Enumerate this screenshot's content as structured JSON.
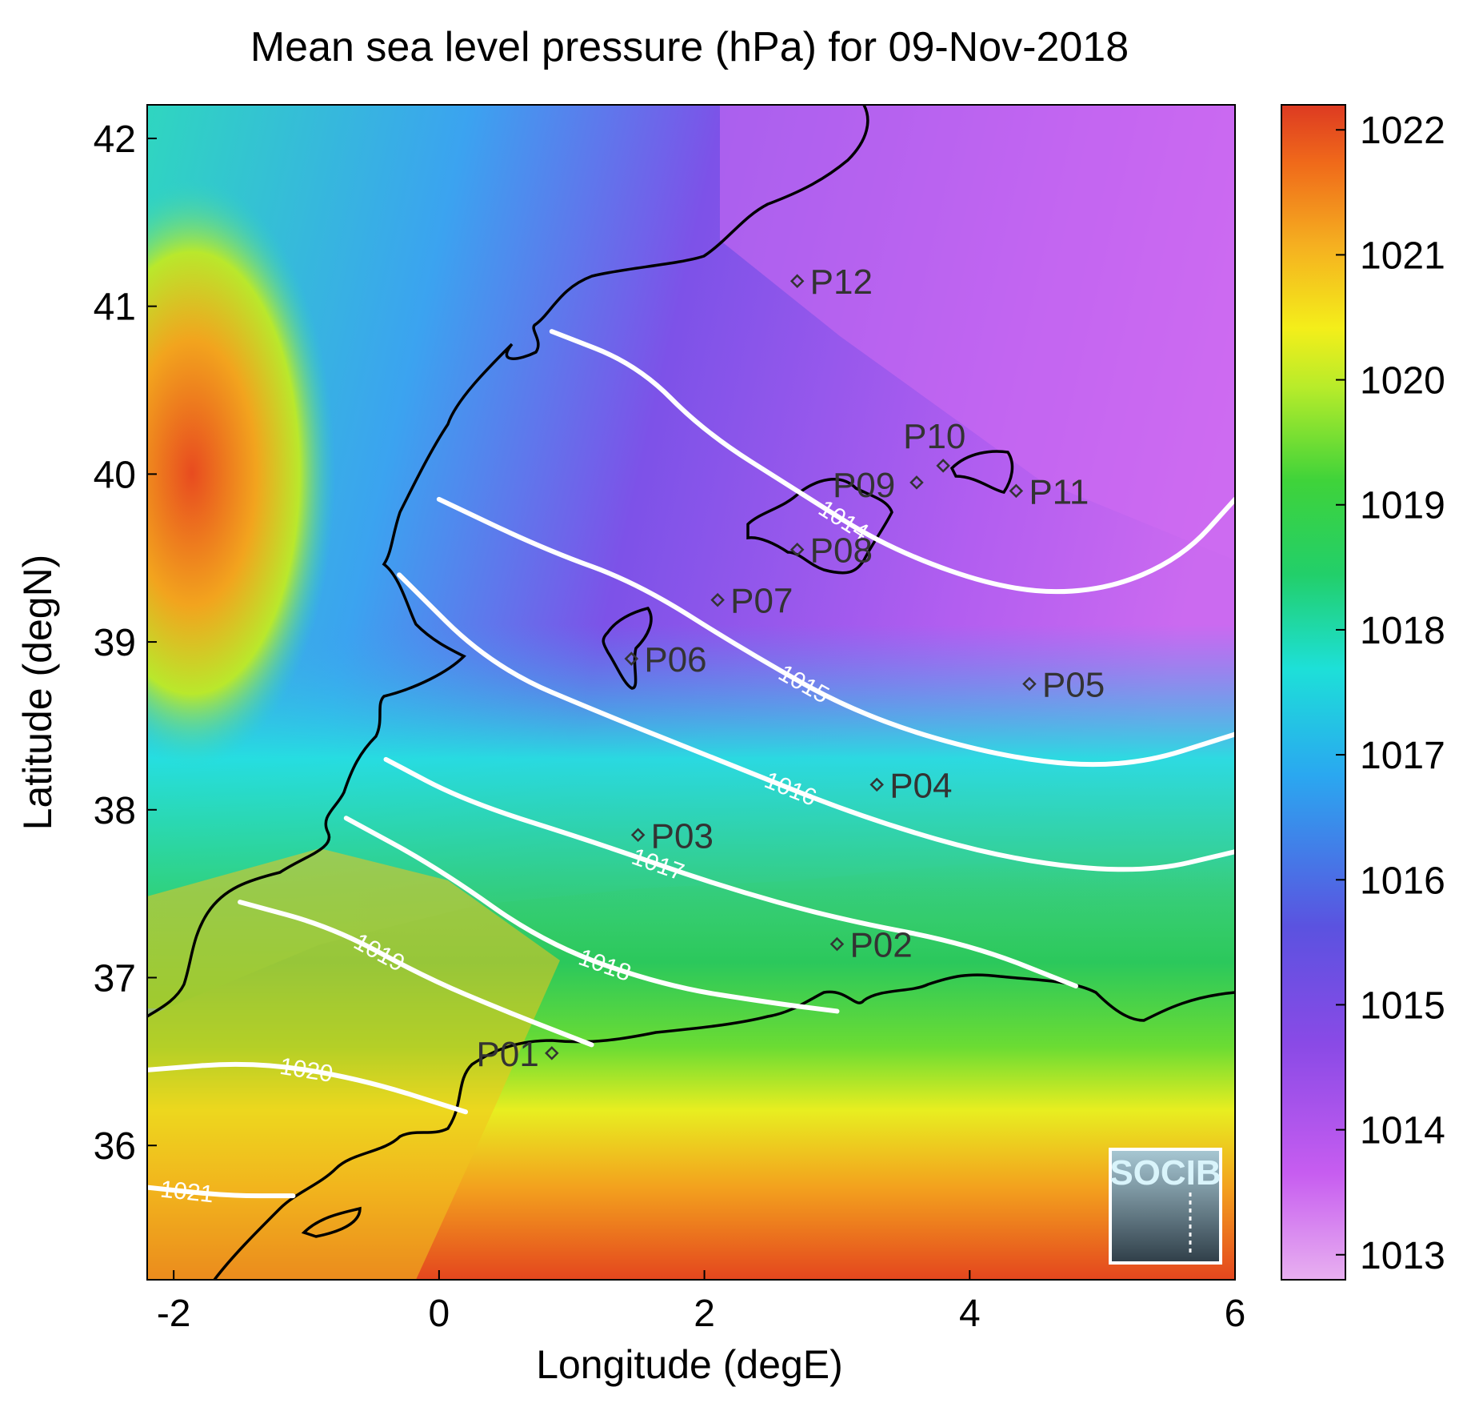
{
  "title": "Mean sea level pressure (hPa) for 09-Nov-2018",
  "xlabel": "Longitude (degE)",
  "ylabel": "Latitude (degN)",
  "x_ticks": [
    "-2",
    "0",
    "2",
    "4",
    "6"
  ],
  "y_ticks": [
    "42",
    "41",
    "40",
    "39",
    "38",
    "37",
    "36"
  ],
  "colorbar": {
    "ticks": [
      "1022",
      "1021",
      "1020",
      "1019",
      "1018",
      "1017",
      "1016",
      "1015",
      "1014",
      "1013"
    ],
    "colors": [
      "#e8b0f0",
      "#c75df0",
      "#8a4ae6",
      "#5b52e0",
      "#2aa8f0",
      "#1de0d8",
      "#22cf6a",
      "#3fd33a",
      "#b8ec2a",
      "#f4ee1a",
      "#f5b020",
      "#f06a1a",
      "#dd3a22"
    ]
  },
  "logo": {
    "text": "SOCIB"
  },
  "chart_data": {
    "type": "map",
    "variable": "Mean sea level pressure",
    "units": "hPa",
    "date": "09-Nov-2018",
    "xlim": [
      -2.2,
      6.0
    ],
    "ylim": [
      35.2,
      42.2
    ],
    "clim": [
      1012.8,
      1022.2
    ],
    "grid": false,
    "points": [
      {
        "name": "P01",
        "lon": 0.85,
        "lat": 36.55
      },
      {
        "name": "P02",
        "lon": 3.0,
        "lat": 37.2
      },
      {
        "name": "P03",
        "lon": 1.5,
        "lat": 37.85
      },
      {
        "name": "P04",
        "lon": 3.3,
        "lat": 38.15
      },
      {
        "name": "P05",
        "lon": 4.45,
        "lat": 38.75
      },
      {
        "name": "P06",
        "lon": 1.45,
        "lat": 38.9
      },
      {
        "name": "P07",
        "lon": 2.1,
        "lat": 39.25
      },
      {
        "name": "P08",
        "lon": 2.7,
        "lat": 39.55
      },
      {
        "name": "P09",
        "lon": 3.6,
        "lat": 39.95
      },
      {
        "name": "P10",
        "lon": 3.8,
        "lat": 40.05
      },
      {
        "name": "P11",
        "lon": 4.35,
        "lat": 39.9
      },
      {
        "name": "P12",
        "lon": 2.7,
        "lat": 41.15
      }
    ],
    "isobars": [
      {
        "value": "1014",
        "path": [
          [
            0.85,
            40.85
          ],
          [
            1.5,
            40.65
          ],
          [
            2.0,
            40.25
          ],
          [
            2.7,
            39.9
          ],
          [
            3.4,
            39.55
          ],
          [
            4.3,
            39.3
          ],
          [
            5.0,
            39.3
          ],
          [
            5.6,
            39.5
          ],
          [
            6.0,
            39.85
          ]
        ]
      },
      {
        "value": "1015",
        "path": [
          [
            0.0,
            39.85
          ],
          [
            0.8,
            39.55
          ],
          [
            1.5,
            39.35
          ],
          [
            2.3,
            38.95
          ],
          [
            3.2,
            38.55
          ],
          [
            4.3,
            38.3
          ],
          [
            5.2,
            38.25
          ],
          [
            6.0,
            38.45
          ]
        ]
      },
      {
        "value": "1016",
        "path": [
          [
            -0.3,
            39.4
          ],
          [
            0.4,
            38.85
          ],
          [
            1.3,
            38.55
          ],
          [
            2.1,
            38.3
          ],
          [
            3.2,
            37.95
          ],
          [
            4.3,
            37.7
          ],
          [
            5.3,
            37.62
          ],
          [
            6.0,
            37.75
          ]
        ]
      },
      {
        "value": "1017",
        "path": [
          [
            -0.4,
            38.3
          ],
          [
            0.2,
            38.05
          ],
          [
            1.2,
            37.8
          ],
          [
            2.1,
            37.55
          ],
          [
            3.0,
            37.35
          ],
          [
            4.0,
            37.2
          ],
          [
            4.8,
            36.95
          ]
        ]
      },
      {
        "value": "1018",
        "path": [
          [
            -0.7,
            37.95
          ],
          [
            0.0,
            37.65
          ],
          [
            0.8,
            37.2
          ],
          [
            1.7,
            36.95
          ],
          [
            2.5,
            36.85
          ],
          [
            3.0,
            36.8
          ]
        ]
      },
      {
        "value": "1019",
        "path": [
          [
            -1.5,
            37.45
          ],
          [
            -0.8,
            37.3
          ],
          [
            -0.1,
            37.0
          ],
          [
            0.5,
            36.8
          ],
          [
            1.15,
            36.6
          ]
        ]
      },
      {
        "value": "1020",
        "path": [
          [
            -2.2,
            36.45
          ],
          [
            -1.4,
            36.5
          ],
          [
            -0.6,
            36.4
          ],
          [
            0.2,
            36.2
          ]
        ]
      },
      {
        "value": "1021",
        "path": [
          [
            -2.2,
            35.75
          ],
          [
            -1.6,
            35.7
          ],
          [
            -1.1,
            35.7
          ]
        ]
      }
    ]
  }
}
